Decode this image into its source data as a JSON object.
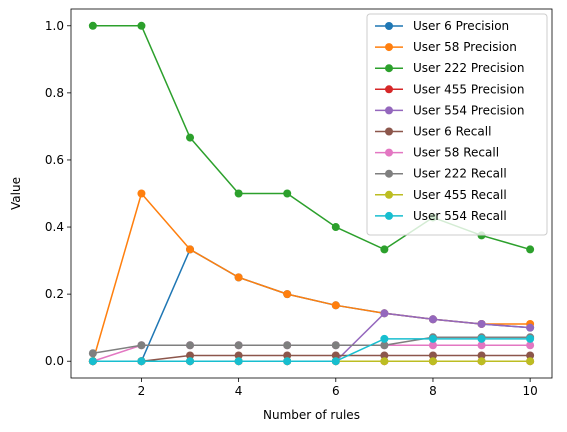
{
  "chart_data": {
    "type": "line",
    "xlabel": "Number of rules",
    "ylabel": "Value",
    "xlim": [
      0.55,
      10.45
    ],
    "ylim": [
      -0.05,
      1.05
    ],
    "xticks": [
      2,
      4,
      6,
      8,
      10
    ],
    "yticks": [
      0.0,
      0.2,
      0.4,
      0.6,
      0.8,
      1.0
    ],
    "grid": false,
    "legend_position": "top-right",
    "x": [
      1,
      2,
      3,
      4,
      5,
      6,
      7,
      8,
      9,
      10
    ],
    "series": [
      {
        "name": "User 6 Precision",
        "color": "#1f77b4",
        "values": [
          0,
          0,
          0.3333,
          0.25,
          0.2,
          0.1667,
          0.1429,
          0.125,
          0.1111,
          0.1
        ]
      },
      {
        "name": "User 58 Precision",
        "color": "#ff7f0e",
        "values": [
          0,
          0.5,
          0.3333,
          0.25,
          0.2,
          0.1667,
          0.1429,
          0.125,
          0.1111,
          0.1111
        ]
      },
      {
        "name": "User 222 Precision",
        "color": "#2ca02c",
        "values": [
          1.0,
          1.0,
          0.6667,
          0.5,
          0.5,
          0.4,
          0.3333,
          0.4286,
          0.375,
          0.3333
        ]
      },
      {
        "name": "User 455 Precision",
        "color": "#d62728",
        "values": [
          0,
          0,
          0,
          0,
          0,
          0,
          0,
          0,
          0,
          0
        ]
      },
      {
        "name": "User 554 Precision",
        "color": "#9467bd",
        "values": [
          0,
          0,
          0,
          0,
          0,
          0,
          0.1429,
          0.125,
          0.1111,
          0.1
        ]
      },
      {
        "name": "User 6 Recall",
        "color": "#8c564b",
        "values": [
          0,
          0,
          0.0172,
          0.0172,
          0.0172,
          0.0172,
          0.0172,
          0.0172,
          0.0172,
          0.0172
        ]
      },
      {
        "name": "User 58 Recall",
        "color": "#e377c2",
        "values": [
          0,
          0.0476,
          0.0476,
          0.0476,
          0.0476,
          0.0476,
          0.0476,
          0.0476,
          0.0476,
          0.0476
        ]
      },
      {
        "name": "User 222 Recall",
        "color": "#7f7f7f",
        "values": [
          0.0238,
          0.0476,
          0.0476,
          0.0476,
          0.0476,
          0.0476,
          0.0476,
          0.0714,
          0.0714,
          0.0714
        ]
      },
      {
        "name": "User 455 Recall",
        "color": "#bcbd22",
        "values": [
          0,
          0,
          0,
          0,
          0,
          0,
          0,
          0,
          0,
          0
        ]
      },
      {
        "name": "User 554 Recall",
        "color": "#17becf",
        "values": [
          0,
          0,
          0,
          0,
          0,
          0,
          0.0667,
          0.0667,
          0.0667,
          0.0667
        ]
      }
    ]
  }
}
